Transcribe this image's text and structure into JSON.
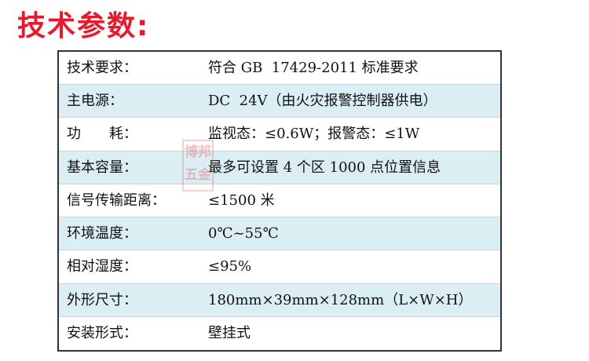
{
  "title": "技术参数:",
  "table": {
    "rows": [
      [
        "技术要求：",
        "符合 GB  17429-2011 标准要求"
      ],
      [
        "主电源：",
        "DC  24V（由火灾报警控制器供电）"
      ],
      [
        "功　　耗：",
        "监视态：≤0.6W；报警态：≤1W"
      ],
      [
        "基本容量：",
        "最多可设置 4 个区 1000 点位置信息"
      ],
      [
        "信号传输距离：",
        "≤1500 米"
      ],
      [
        "环境温度：",
        "0℃~55℃"
      ],
      [
        "相对湿度：",
        "≤95%"
      ],
      [
        "外形尺寸：",
        "180mm×39mm×128mm（L×W×H）"
      ],
      [
        "安装形式：",
        "壁挂式"
      ]
    ]
  },
  "watermark": [
    "博邦",
    "五金"
  ]
}
